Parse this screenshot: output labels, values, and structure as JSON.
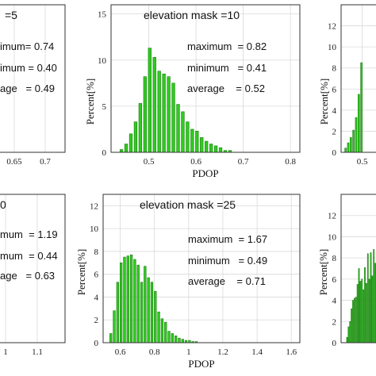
{
  "chart_data": [
    {
      "id": "tl",
      "type": "bar",
      "title": "=5",
      "xlabel": "",
      "ylabel": "",
      "x_ticks": [
        "0.65",
        "0.7"
      ],
      "y_ticks": [],
      "stats": [
        "imum= 0.74",
        "imum = 0.40",
        "age   = 0.49"
      ],
      "x": [],
      "values": []
    },
    {
      "id": "tc",
      "type": "bar",
      "title": "elevation mask =10",
      "xlabel": "PDOP",
      "ylabel": "Percent[%]",
      "xlim": [
        0.42,
        0.82
      ],
      "ylim": [
        0,
        16
      ],
      "x_ticks": [
        "0.5",
        "0.6",
        "0.7",
        "0.8"
      ],
      "y_ticks": [
        "0",
        "5",
        "10",
        "15"
      ],
      "stats": [
        "maximum  = 0.82",
        "minimum   = 0.41",
        "average    = 0.52"
      ],
      "x": [
        0.442,
        0.452,
        0.462,
        0.472,
        0.482,
        0.492,
        0.502,
        0.512,
        0.522,
        0.532,
        0.542,
        0.552,
        0.562,
        0.572,
        0.582,
        0.592,
        0.602,
        0.612,
        0.622,
        0.632,
        0.642,
        0.652,
        0.662,
        0.672
      ],
      "values": [
        0.3,
        0.9,
        2.0,
        3.3,
        5.3,
        8.2,
        11.3,
        10.3,
        8.8,
        8.5,
        8.2,
        7.5,
        5.2,
        4.4,
        3.3,
        2.5,
        2.3,
        1.6,
        1.2,
        0.9,
        0.7,
        0.5,
        0.2,
        0.2
      ]
    },
    {
      "id": "tr",
      "type": "bar",
      "title": "",
      "xlabel": "",
      "ylabel": "Percent[%]",
      "xlim": [
        0.42,
        0.6
      ],
      "ylim": [
        0,
        14
      ],
      "x_ticks": [
        "0.5"
      ],
      "y_ticks": [
        "0",
        "2",
        "4",
        "6",
        "8",
        "10",
        "12"
      ],
      "stats": [],
      "x": [
        0.437,
        0.447,
        0.457,
        0.467,
        0.477,
        0.487,
        0.497
      ],
      "values": [
        0.4,
        0.9,
        1.4,
        2.1,
        3.3,
        5.5,
        8.5
      ]
    },
    {
      "id": "bl",
      "type": "bar",
      "title": "0",
      "xlabel": "",
      "ylabel": "",
      "x_ticks": [
        "1",
        "1.1"
      ],
      "y_ticks": [],
      "stats": [
        "mum  = 1.19",
        "mum  = 0.44",
        "age   = 0.63"
      ],
      "x": [],
      "values": []
    },
    {
      "id": "bc",
      "type": "bar",
      "title": "elevation mask =25",
      "xlabel": "PDOP",
      "ylabel": "Percent[%]",
      "xlim": [
        0.5,
        1.65
      ],
      "ylim": [
        0,
        13
      ],
      "x_ticks": [
        "0.6",
        "0.8",
        "1",
        "1.2",
        "1.4",
        "1.6"
      ],
      "y_ticks": [
        "0",
        "2",
        "4",
        "6",
        "8",
        "10",
        "12"
      ],
      "stats": [
        "maximum  = 1.67",
        "minimum   = 0.49",
        "average    = 0.71"
      ],
      "x": [
        0.545,
        0.565,
        0.585,
        0.605,
        0.625,
        0.645,
        0.665,
        0.685,
        0.705,
        0.725,
        0.745,
        0.765,
        0.785,
        0.805,
        0.825,
        0.845,
        0.865,
        0.885,
        0.905,
        0.925,
        0.945,
        0.965,
        0.985,
        1.005,
        1.025,
        1.045
      ],
      "values": [
        0.8,
        2.8,
        5.3,
        7.0,
        7.5,
        7.6,
        7.7,
        7.3,
        6.8,
        5.3,
        6.7,
        5.7,
        5.3,
        4.5,
        2.7,
        2.1,
        1.8,
        1.0,
        0.8,
        0.6,
        0.4,
        0.3,
        0.2,
        0.2,
        0.1,
        0.1
      ]
    },
    {
      "id": "br",
      "type": "bar",
      "title": "",
      "xlabel": "",
      "ylabel": "Percent[%]",
      "xlim": [
        0.4,
        0.72
      ],
      "ylim": [
        0,
        14
      ],
      "x_ticks": [],
      "y_ticks": [
        "0",
        "2",
        "4",
        "6",
        "8",
        "10",
        "12"
      ],
      "stats": [],
      "x": [
        0.44,
        0.45,
        0.46,
        0.47,
        0.48,
        0.49,
        0.5,
        0.51,
        0.52,
        0.53,
        0.54,
        0.55,
        0.56,
        0.57,
        0.58,
        0.59,
        0.6,
        0.61,
        0.62,
        0.63,
        0.64
      ],
      "values": [
        0.5,
        1.5,
        2.0,
        3.2,
        4.0,
        4.2,
        4.3,
        5.5,
        7.0,
        5.8,
        6.0,
        5.0,
        7.1,
        5.6,
        8.4,
        6.0,
        8.5,
        6.3,
        8.8,
        7.5,
        9.0
      ]
    }
  ]
}
